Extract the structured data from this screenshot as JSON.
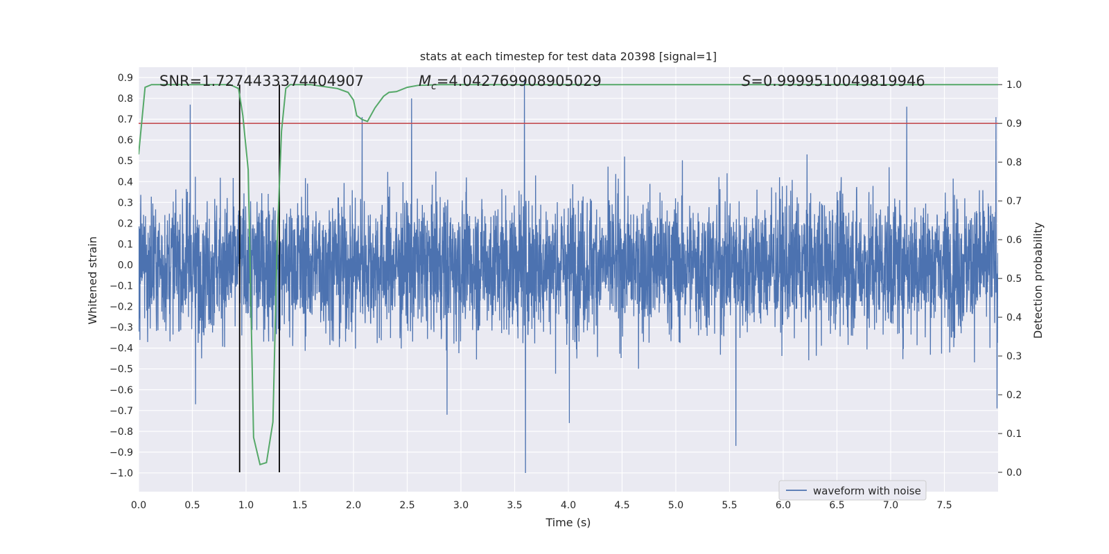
{
  "chart_data": {
    "type": "line",
    "title": "stats at each timestep for test data 20398 [signal=1]",
    "xlabel": "Time (s)",
    "ylabel_left": "Whitened strain",
    "ylabel_right": "Detection probability",
    "xlim": [
      0.0,
      8.0
    ],
    "ylim_left": [
      -1.09,
      0.95
    ],
    "ylim_right": [
      -0.05,
      1.045
    ],
    "x_ticks": [
      "0.0",
      "0.5",
      "1.0",
      "1.5",
      "2.0",
      "2.5",
      "3.0",
      "3.5",
      "4.0",
      "4.5",
      "5.0",
      "5.5",
      "6.0",
      "6.5",
      "7.0",
      "7.5"
    ],
    "y_left_ticks": [
      "0.9",
      "0.8",
      "0.7",
      "0.6",
      "0.5",
      "0.4",
      "0.3",
      "0.2",
      "0.1",
      "0.0",
      "−0.1",
      "−0.2",
      "−0.3",
      "−0.4",
      "−0.5",
      "−0.6",
      "−0.7",
      "−0.8",
      "−0.9",
      "−1.0"
    ],
    "y_right_ticks": [
      "1.0",
      "0.9",
      "0.8",
      "0.7",
      "0.6",
      "0.5",
      "0.4",
      "0.3",
      "0.2",
      "0.1",
      "0.0"
    ],
    "annotations": {
      "snr": "SNR=1.7274433374404907",
      "mc": "=4.042769908905029",
      "s": "=0.9999510049819946"
    },
    "legend": {
      "label": "waveform with noise",
      "location": "lower-right"
    },
    "threshold": {
      "probability": 0.9,
      "color": "#c44e52"
    },
    "event_window": {
      "x_start": 0.94,
      "x_end": 1.31,
      "color": "#000000"
    },
    "waveform": {
      "name": "waveform with noise",
      "color": "#4c72b0",
      "notable_peaks": [
        {
          "x": 0.48,
          "y": 0.77
        },
        {
          "x": 0.53,
          "y": -0.67
        },
        {
          "x": 2.08,
          "y": 0.71
        },
        {
          "x": 2.54,
          "y": 0.8
        },
        {
          "x": 2.87,
          "y": -0.72
        },
        {
          "x": 3.59,
          "y": 0.89
        },
        {
          "x": 3.6,
          "y": -1.0
        },
        {
          "x": 4.01,
          "y": -0.76
        },
        {
          "x": 5.56,
          "y": -0.87
        },
        {
          "x": 7.15,
          "y": 0.76
        },
        {
          "x": 7.98,
          "y": 0.71
        },
        {
          "x": 7.99,
          "y": -0.69
        }
      ]
    },
    "detection_probability": {
      "name": "detection probability",
      "color": "#55a868",
      "x": [
        0.0,
        0.06,
        0.12,
        0.2,
        0.4,
        0.6,
        0.85,
        0.93,
        0.97,
        1.02,
        1.07,
        1.13,
        1.19,
        1.25,
        1.29,
        1.33,
        1.37,
        1.41,
        1.6,
        1.85,
        1.95,
        2.0,
        2.03,
        2.08,
        2.13,
        2.2,
        2.28,
        2.33,
        2.4,
        2.5,
        2.6,
        2.8,
        3.2,
        4.0,
        6.0,
        8.0
      ],
      "y": [
        0.82,
        0.993,
        1.0,
        1.0,
        1.0,
        1.0,
        1.0,
        0.99,
        0.92,
        0.78,
        0.09,
        0.02,
        0.025,
        0.13,
        0.6,
        0.88,
        0.99,
        1.0,
        1.0,
        0.99,
        0.98,
        0.96,
        0.92,
        0.91,
        0.905,
        0.94,
        0.97,
        0.98,
        0.982,
        0.993,
        0.998,
        1.0,
        1.0,
        1.0,
        1.0,
        1.0
      ]
    }
  }
}
